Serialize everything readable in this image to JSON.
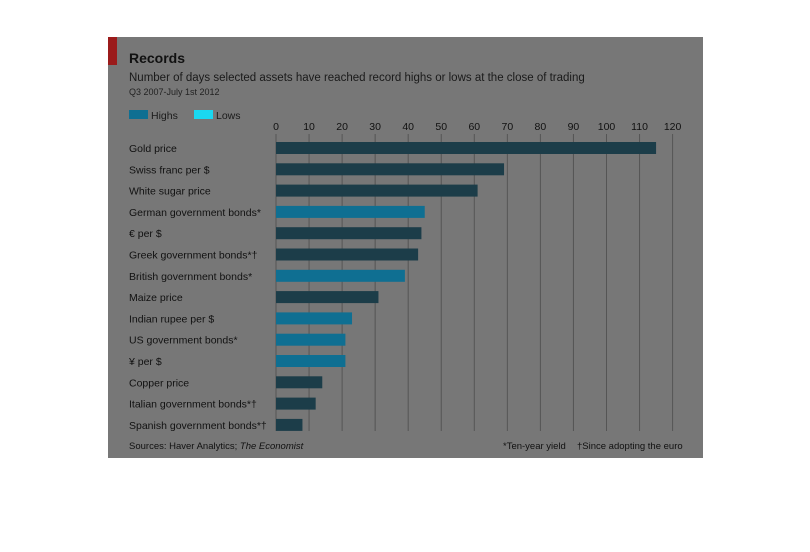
{
  "chart_data": {
    "type": "bar",
    "title": "Records",
    "subtitle": "Number of days selected assets have reached record highs or lows at the close of trading",
    "date_range": "Q3 2007-July 1st 2012",
    "legend": [
      {
        "name": "Highs",
        "color": "#0f6f92"
      },
      {
        "name": "Lows",
        "color": "#1ad8f0"
      }
    ],
    "legend_placement": "top-left",
    "xlim": [
      0,
      120
    ],
    "xticks": [
      0,
      10,
      20,
      30,
      40,
      50,
      60,
      70,
      80,
      90,
      100,
      110,
      120
    ],
    "grid": true,
    "categories": [
      "Gold price",
      "Swiss franc per $",
      "White sugar price",
      "German government bonds*",
      "€ per $",
      "Greek government bonds*†",
      "British government bonds*",
      "Maize price",
      "Indian rupee per $",
      "US government bonds*",
      "¥ per $",
      "Copper price",
      "Italian government bonds*†",
      "Spanish government bonds*†"
    ],
    "series": [
      {
        "name": "Highs",
        "values": [
          115,
          69,
          61,
          45,
          44,
          43,
          39,
          31,
          23,
          21,
          21,
          14,
          12,
          8
        ]
      },
      {
        "name": "Lows",
        "values": [
          0,
          0,
          0,
          0,
          0,
          0,
          0,
          0,
          0,
          0,
          0,
          0,
          0,
          0
        ]
      }
    ],
    "bar_colors": [
      "dark",
      "dark",
      "dark",
      "mid",
      "dark",
      "dark",
      "mid",
      "dark",
      "mid",
      "mid",
      "mid",
      "dark",
      "dark",
      "dark"
    ],
    "colors": {
      "dark": "#1c3d49",
      "mid": "#0f6f92",
      "grid": "#555555",
      "background": "#777777",
      "accent": "#9b1b1b"
    },
    "source": "Sources: Haver Analytics; ",
    "source_italic": "The Economist",
    "footnote_1": "*Ten-year yield",
    "footnote_2": "†Since adopting the euro"
  }
}
